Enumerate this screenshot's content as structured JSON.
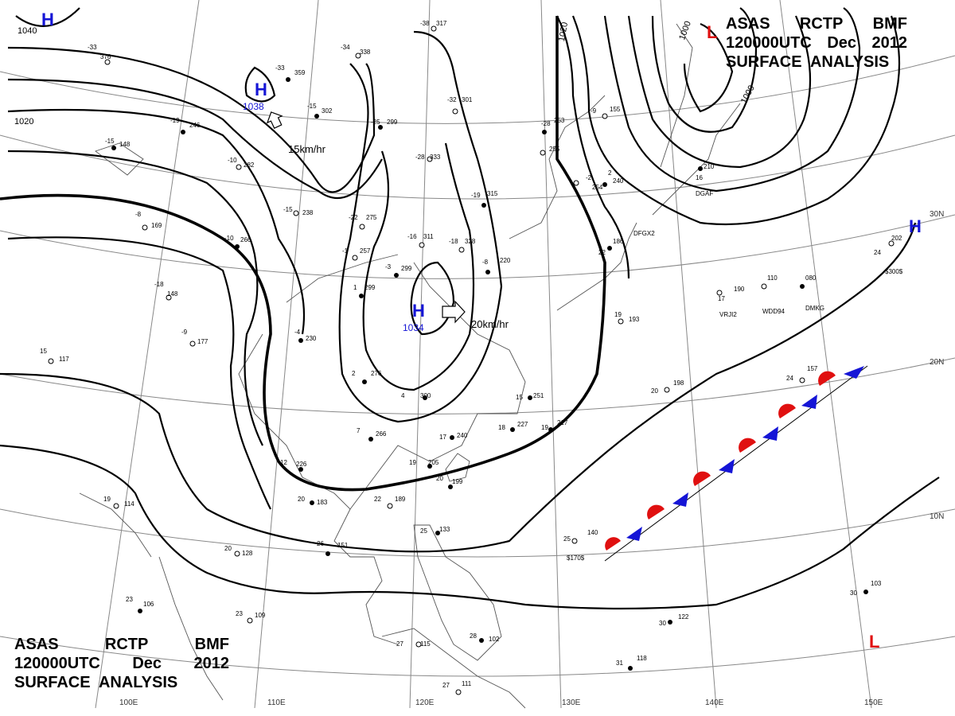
{
  "header": {
    "line1": [
      "ASAS",
      "RCTP",
      "BMF"
    ],
    "line2": [
      "120000UTC",
      "Dec",
      "2012"
    ],
    "line3": "SURFACE  ANALYSIS"
  },
  "isobar_labels": [
    "1040",
    "1020",
    "1020",
    "1000",
    "1000"
  ],
  "pressure_centers": [
    {
      "type": "H",
      "value": "1038",
      "motion": "15km/hr"
    },
    {
      "type": "H",
      "value": "1034",
      "motion": "20km/hr"
    },
    {
      "type": "H",
      "value": ""
    },
    {
      "type": "H",
      "value": ""
    },
    {
      "type": "L",
      "value": ""
    },
    {
      "type": "L",
      "value": ""
    }
  ],
  "longitude_labels": [
    "100E",
    "110E",
    "120E",
    "130E",
    "140E",
    "150E"
  ],
  "latitude_labels": [
    "30N",
    "20N",
    "10N"
  ],
  "stations": [
    {
      "t": "-33",
      "p": "376"
    },
    {
      "t": "-38",
      "p": "317"
    },
    {
      "t": "-34",
      "p": "338"
    },
    {
      "t": "-33",
      "p": "359"
    },
    {
      "t": "-15",
      "p": "302"
    },
    {
      "t": "-19",
      "p": "246"
    },
    {
      "t": "-15",
      "p": "148"
    },
    {
      "t": "-32",
      "p": "301"
    },
    {
      "t": "-25",
      "p": "299"
    },
    {
      "t": "-28",
      "p": "333"
    },
    {
      "t": "-10",
      "p": "282"
    },
    {
      "t": "-15",
      "p": "238"
    },
    {
      "t": "-22",
      "p": "275"
    },
    {
      "t": "-8",
      "p": "169"
    },
    {
      "t": "-19",
      "p": "315"
    },
    {
      "t": "-16",
      "p": "311"
    },
    {
      "t": "-18",
      "p": "328"
    },
    {
      "t": "-10",
      "p": "266"
    },
    {
      "t": "-1",
      "p": "257"
    },
    {
      "t": "-3",
      "p": "299"
    },
    {
      "t": "-8",
      "p": "220"
    },
    {
      "t": "1",
      "p": "299"
    },
    {
      "t": "-18",
      "p": "148"
    },
    {
      "t": "-9",
      "p": "177"
    },
    {
      "t": "15",
      "p": "117"
    },
    {
      "t": "4",
      "p": "300"
    },
    {
      "t": "2",
      "p": "276"
    },
    {
      "t": "15",
      "p": "251"
    },
    {
      "t": "-4",
      "p": "230"
    },
    {
      "t": "7",
      "p": "266"
    },
    {
      "t": "18",
      "p": "227"
    },
    {
      "t": "19",
      "p": "217"
    },
    {
      "t": "17",
      "p": "240"
    },
    {
      "t": "12",
      "p": "226"
    },
    {
      "t": "19",
      "p": "205"
    },
    {
      "t": "20",
      "p": "183"
    },
    {
      "t": "22",
      "p": "189"
    },
    {
      "t": "20",
      "p": "199"
    },
    {
      "t": "19",
      "p": "114"
    },
    {
      "t": "26",
      "p": "151"
    },
    {
      "t": "20",
      "p": "128"
    },
    {
      "t": "25",
      "p": "133"
    },
    {
      "t": "23",
      "p": "106"
    },
    {
      "t": "23",
      "p": "109"
    },
    {
      "t": "25",
      "p": "140"
    },
    {
      "t": "27",
      "p": "115"
    },
    {
      "t": "28",
      "p": "102"
    },
    {
      "t": "27",
      "p": "111"
    },
    {
      "t": "31",
      "p": "118"
    },
    {
      "t": "30",
      "p": "122"
    },
    {
      "t": "30",
      "p": "103"
    },
    {
      "t": "24",
      "p": "202"
    },
    {
      "t": "24",
      "p": "157"
    },
    {
      "t": "20",
      "p": "198"
    },
    {
      "t": "19",
      "p": "193"
    },
    {
      "t": "17",
      "p": "190"
    },
    {
      "t": "22",
      "p": "186"
    },
    {
      "t": "",
      "p": "080"
    },
    {
      "t": "",
      "p": "110"
    },
    {
      "t": "",
      "p": "255"
    },
    {
      "t": "-28",
      "p": "253"
    },
    {
      "t": "-2",
      "p": "254"
    },
    {
      "t": "2",
      "p": "240"
    },
    {
      "t": "16",
      "p": "210"
    },
    {
      "t": "-9",
      "p": "155"
    }
  ],
  "station_ids": [
    "DGAF",
    "DFGX2",
    "VRJI2",
    "WDD94",
    "DMKG",
    "$170$",
    "$300$"
  ],
  "colors": {
    "high": "#1515d6",
    "low": "#e01010",
    "warm_front": "#e01010",
    "cold_front": "#1515d6",
    "isobar": "#000000",
    "grid": "#888888"
  }
}
